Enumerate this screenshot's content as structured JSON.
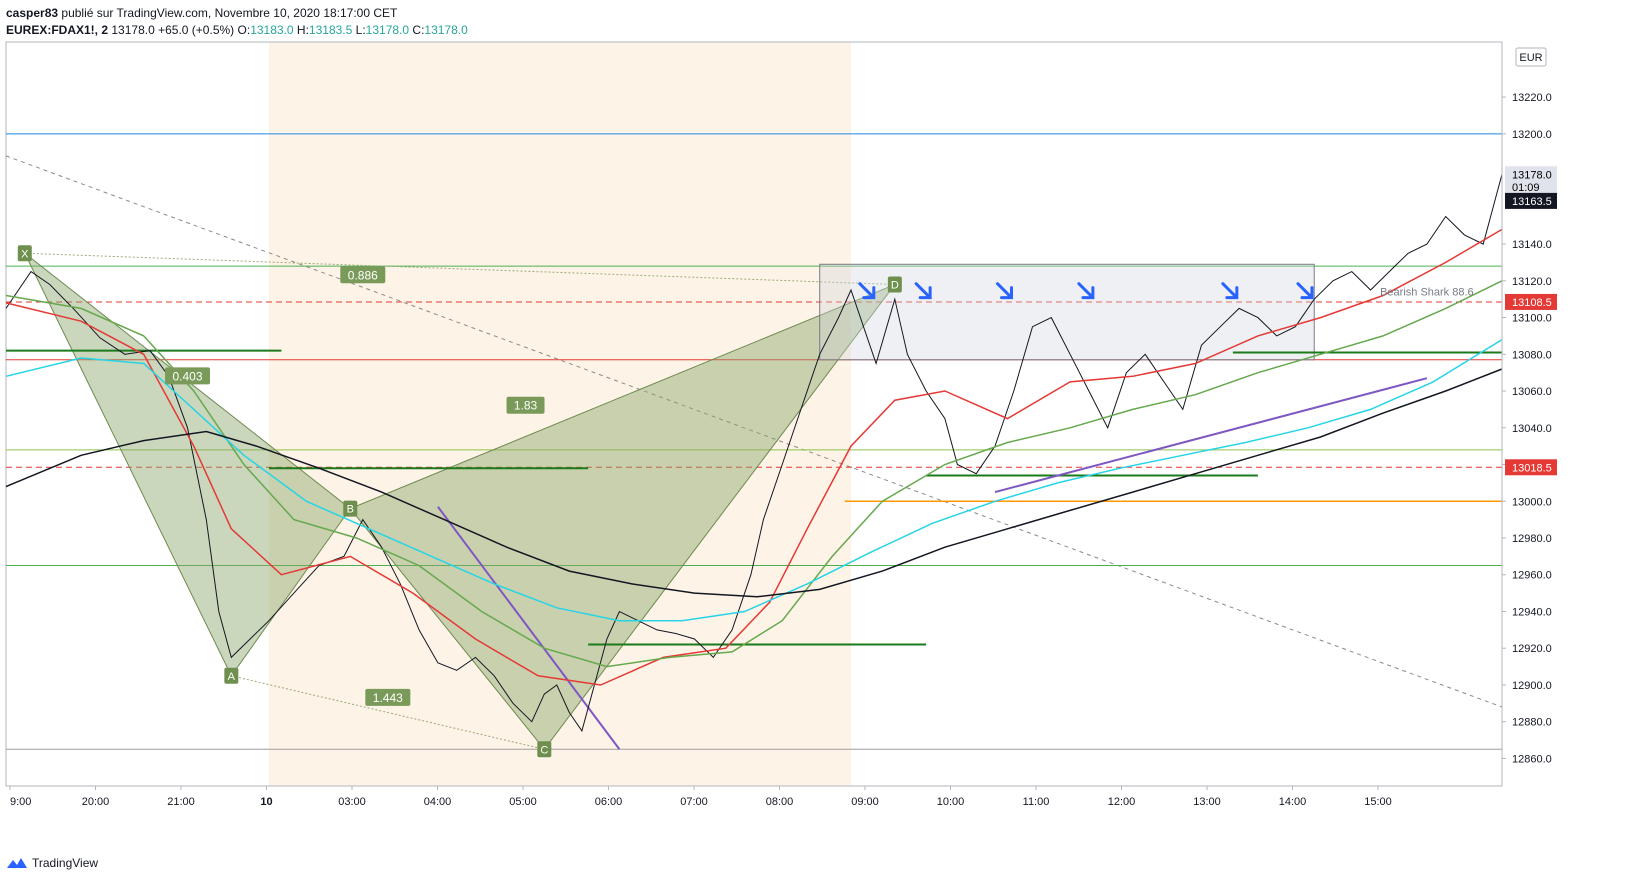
{
  "header": {
    "author": "casper83",
    "published": "publié sur TradingView.com, Novembre 10, 2020 18:17:00 CET",
    "symbol": "EUREX:FDAX1!, 2",
    "last": "13178.0",
    "change": "+65.0 (+0.5%)",
    "o_label": "O:",
    "o": "13183.0",
    "h_label": "H:",
    "h": "13183.5",
    "l_label": "L:",
    "l": "13178.0",
    "c_label": "C:",
    "c": "13178.0"
  },
  "footer": {
    "brand": "TradingView"
  },
  "chart_data": {
    "type": "line",
    "title": "",
    "currency": "EUR",
    "ylim": [
      12845,
      13250
    ],
    "y_ticks": [
      12860,
      12880,
      12900,
      12920,
      12940,
      12960,
      12980,
      13000,
      13020,
      13040,
      13060,
      13080,
      13100,
      13120,
      13140,
      13200,
      13220
    ],
    "x_ticks": [
      "9:00",
      "20:00",
      "21:00",
      "10",
      "03:00",
      "04:00",
      "05:00",
      "06:00",
      "07:00",
      "08:00",
      "09:00",
      "10:00",
      "11:00",
      "12:00",
      "13:00",
      "14:00",
      "15:00"
    ],
    "price_tags": [
      {
        "label": "13178.0",
        "value": 13178.0,
        "color": "#000000",
        "bg": "#e0e3eb"
      },
      {
        "label": "01:09",
        "value": 13171,
        "color": "#000000",
        "bg": "#e0e3eb"
      },
      {
        "label": "13163.5",
        "value": 13163.5,
        "color": "#ffffff",
        "bg": "#131722"
      },
      {
        "label": "13108.5",
        "value": 13108.5,
        "color": "#ffffff",
        "bg": "#e53935"
      },
      {
        "label": "13018.5",
        "value": 13018.5,
        "color": "#ffffff",
        "bg": "#e53935"
      }
    ],
    "series": [
      {
        "name": "price",
        "color": "#131722",
        "values": [
          [
            0,
            13105
          ],
          [
            4,
            13125
          ],
          [
            7,
            13118
          ],
          [
            11,
            13104
          ],
          [
            15,
            13089
          ],
          [
            19,
            13080
          ],
          [
            23,
            13082
          ],
          [
            26,
            13068
          ],
          [
            29,
            13040
          ],
          [
            32,
            12990
          ],
          [
            34,
            12940
          ],
          [
            36,
            12915
          ],
          [
            39,
            12925
          ],
          [
            42,
            12935
          ],
          [
            46,
            12950
          ],
          [
            50,
            12965
          ],
          [
            54,
            12970
          ],
          [
            57,
            12990
          ],
          [
            60,
            12975
          ],
          [
            63,
            12955
          ],
          [
            66,
            12930
          ],
          [
            69,
            12912
          ],
          [
            72,
            12908
          ],
          [
            75,
            12915
          ],
          [
            78,
            12905
          ],
          [
            81,
            12890
          ],
          [
            84,
            12880
          ],
          [
            86,
            12895
          ],
          [
            88,
            12900
          ],
          [
            90,
            12885
          ],
          [
            92,
            12875
          ],
          [
            94,
            12900
          ],
          [
            96,
            12925
          ],
          [
            98,
            12940
          ],
          [
            101,
            12935
          ],
          [
            104,
            12930
          ],
          [
            107,
            12928
          ],
          [
            110,
            12925
          ],
          [
            113,
            12915
          ],
          [
            116,
            12930
          ],
          [
            119,
            12960
          ],
          [
            121,
            12990
          ],
          [
            124,
            13020
          ],
          [
            127,
            13050
          ],
          [
            130,
            13080
          ],
          [
            133,
            13100
          ],
          [
            135,
            13115
          ],
          [
            137,
            13095
          ],
          [
            139,
            13075
          ],
          [
            142,
            13110
          ],
          [
            144,
            13080
          ],
          [
            147,
            13060
          ],
          [
            150,
            13045
          ],
          [
            152,
            13020
          ],
          [
            155,
            13015
          ],
          [
            158,
            13030
          ],
          [
            161,
            13060
          ],
          [
            164,
            13095
          ],
          [
            167,
            13100
          ],
          [
            170,
            13080
          ],
          [
            173,
            13060
          ],
          [
            176,
            13040
          ],
          [
            179,
            13070
          ],
          [
            182,
            13080
          ],
          [
            185,
            13065
          ],
          [
            188,
            13050
          ],
          [
            191,
            13085
          ],
          [
            194,
            13095
          ],
          [
            197,
            13105
          ],
          [
            200,
            13100
          ],
          [
            203,
            13090
          ],
          [
            206,
            13095
          ],
          [
            209,
            13110
          ],
          [
            212,
            13120
          ],
          [
            215,
            13125
          ],
          [
            218,
            13115
          ],
          [
            221,
            13125
          ],
          [
            224,
            13135
          ],
          [
            227,
            13140
          ],
          [
            230,
            13155
          ],
          [
            233,
            13145
          ],
          [
            236,
            13140
          ],
          [
            239,
            13178
          ]
        ]
      },
      {
        "name": "ema-red",
        "color": "#e53935",
        "values": [
          [
            0,
            13108
          ],
          [
            12,
            13098
          ],
          [
            22,
            13080
          ],
          [
            30,
            13030
          ],
          [
            36,
            12985
          ],
          [
            44,
            12960
          ],
          [
            55,
            12970
          ],
          [
            65,
            12950
          ],
          [
            75,
            12925
          ],
          [
            85,
            12905
          ],
          [
            95,
            12900
          ],
          [
            105,
            12915
          ],
          [
            115,
            12920
          ],
          [
            122,
            12945
          ],
          [
            128,
            12985
          ],
          [
            135,
            13030
          ],
          [
            142,
            13055
          ],
          [
            150,
            13060
          ],
          [
            160,
            13045
          ],
          [
            170,
            13065
          ],
          [
            180,
            13068
          ],
          [
            190,
            13075
          ],
          [
            200,
            13090
          ],
          [
            210,
            13100
          ],
          [
            220,
            13112
          ],
          [
            230,
            13130
          ],
          [
            239,
            13148
          ]
        ]
      },
      {
        "name": "ema-green",
        "color": "#66a84e",
        "values": [
          [
            0,
            13112
          ],
          [
            12,
            13105
          ],
          [
            22,
            13090
          ],
          [
            30,
            13060
          ],
          [
            38,
            13020
          ],
          [
            46,
            12990
          ],
          [
            56,
            12980
          ],
          [
            66,
            12965
          ],
          [
            76,
            12940
          ],
          [
            86,
            12920
          ],
          [
            96,
            12910
          ],
          [
            106,
            12915
          ],
          [
            116,
            12918
          ],
          [
            124,
            12935
          ],
          [
            132,
            12970
          ],
          [
            140,
            13000
          ],
          [
            150,
            13020
          ],
          [
            160,
            13032
          ],
          [
            170,
            13040
          ],
          [
            180,
            13050
          ],
          [
            190,
            13058
          ],
          [
            200,
            13070
          ],
          [
            210,
            13080
          ],
          [
            220,
            13090
          ],
          [
            230,
            13105
          ],
          [
            239,
            13120
          ]
        ]
      },
      {
        "name": "ema-cyan",
        "color": "#26d4e6",
        "values": [
          [
            0,
            13068
          ],
          [
            12,
            13078
          ],
          [
            22,
            13075
          ],
          [
            30,
            13050
          ],
          [
            38,
            13025
          ],
          [
            48,
            13000
          ],
          [
            58,
            12985
          ],
          [
            68,
            12970
          ],
          [
            78,
            12955
          ],
          [
            88,
            12942
          ],
          [
            98,
            12935
          ],
          [
            108,
            12935
          ],
          [
            118,
            12940
          ],
          [
            128,
            12955
          ],
          [
            138,
            12972
          ],
          [
            148,
            12988
          ],
          [
            158,
            13000
          ],
          [
            168,
            13010
          ],
          [
            178,
            13018
          ],
          [
            188,
            13025
          ],
          [
            198,
            13032
          ],
          [
            208,
            13040
          ],
          [
            218,
            13050
          ],
          [
            228,
            13065
          ],
          [
            239,
            13088
          ]
        ]
      },
      {
        "name": "ema-black",
        "color": "#131722",
        "values": [
          [
            0,
            13008
          ],
          [
            12,
            13025
          ],
          [
            22,
            13033
          ],
          [
            32,
            13038
          ],
          [
            40,
            13030
          ],
          [
            50,
            13018
          ],
          [
            60,
            13005
          ],
          [
            70,
            12990
          ],
          [
            80,
            12975
          ],
          [
            90,
            12962
          ],
          [
            100,
            12955
          ],
          [
            110,
            12950
          ],
          [
            120,
            12948
          ],
          [
            130,
            12952
          ],
          [
            140,
            12962
          ],
          [
            150,
            12975
          ],
          [
            160,
            12985
          ],
          [
            170,
            12995
          ],
          [
            180,
            13005
          ],
          [
            190,
            13015
          ],
          [
            200,
            13025
          ],
          [
            210,
            13035
          ],
          [
            220,
            13048
          ],
          [
            230,
            13060
          ],
          [
            239,
            13072
          ]
        ]
      }
    ],
    "levels": [
      {
        "value": 13200,
        "color": "#1e88e5"
      },
      {
        "value": 13128,
        "color": "#4caf50"
      },
      {
        "value": 13077,
        "color": "#e53935"
      },
      {
        "value": 13028,
        "color": "#8bc34a"
      },
      {
        "value": 12965,
        "color": "#4caf50"
      },
      {
        "value": 12865,
        "color": "#9e9e9e"
      },
      {
        "value": 13108.5,
        "color": "#e53935",
        "dashed": true
      },
      {
        "value": 13018.5,
        "color": "#e53935",
        "dashed": true
      },
      {
        "value": 13000,
        "color": "#ff9800",
        "from": 134
      }
    ],
    "harmonic_points": [
      {
        "label": "X",
        "x": 3,
        "y": 13135
      },
      {
        "label": "A",
        "x": 36,
        "y": 12905
      },
      {
        "label": "B",
        "x": 55,
        "y": 12996
      },
      {
        "label": "C",
        "x": 86,
        "y": 12865
      },
      {
        "label": "D",
        "x": 142,
        "y": 13118
      }
    ],
    "ratios": [
      {
        "label": "0.886",
        "x": 57,
        "y": 13123
      },
      {
        "label": "0.403",
        "x": 29,
        "y": 13068
      },
      {
        "label": "1.83",
        "x": 83,
        "y": 13052
      },
      {
        "label": "1.443",
        "x": 61,
        "y": 12893
      }
    ],
    "pattern_label": "Bearish Shark 88.6",
    "rectangle": {
      "x0": 130,
      "x1": 209,
      "y0": 13077,
      "y1": 13129
    },
    "arrows_x": [
      138,
      147,
      160,
      173,
      196,
      208
    ]
  }
}
